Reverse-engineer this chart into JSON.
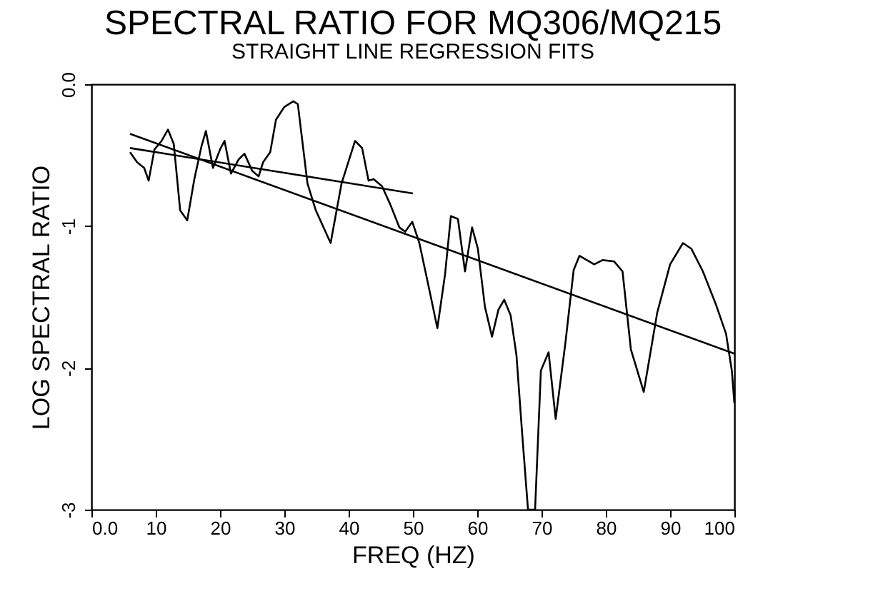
{
  "chart_data": {
    "type": "line",
    "title": "SPECTRAL RATIO FOR MQ306/MQ215",
    "subtitle": "STRAIGHT LINE REGRESSION FITS",
    "xlabel": "FREQ (HZ)",
    "ylabel": "LOG SPECTRAL RATIO",
    "xlim": [
      0,
      100
    ],
    "xticks": [
      {
        "value": 0,
        "label": "0.0"
      },
      10,
      20,
      30,
      40,
      50,
      60,
      70,
      80,
      90,
      100
    ],
    "ylim": [
      -3,
      0
    ],
    "yticks": [
      -3,
      -2,
      -1,
      {
        "value": 0,
        "label": "0.0"
      }
    ],
    "grid": false,
    "marker": "none",
    "line_style": "solid",
    "series": [
      {
        "color": "#000000",
        "x": [
          6,
          7.1,
          8.2,
          8.9,
          9.8,
          10.9,
          11.9,
          12.8,
          13.8,
          14.9,
          16,
          17.1,
          17.8,
          18.9,
          20,
          20.7,
          21.7,
          22.9,
          23.8,
          25,
          26,
          26.7,
          27.8,
          28.7,
          30,
          31.4,
          32.1,
          33.6,
          34.9,
          37.2,
          38.9,
          41,
          42.1,
          43.1,
          43.9,
          45.2,
          46.5,
          47.9,
          48.8,
          49.9,
          51,
          52.6,
          53.8,
          55,
          55.9,
          57,
          58.1,
          59.2,
          60.1,
          61.2,
          62.3,
          63.3,
          64.2,
          65.2,
          66.1,
          67,
          67.9,
          69,
          69.9,
          71.1,
          72.2,
          73.7,
          75,
          75.9,
          78.2,
          79.5,
          81.3,
          82.6,
          83.9,
          85.9,
          88,
          90,
          92,
          93.3,
          95.1,
          97.1,
          98.7,
          99.6,
          100
        ],
        "values": [
          -0.48,
          -0.55,
          -0.59,
          -0.68,
          -0.46,
          -0.4,
          -0.32,
          -0.42,
          -0.89,
          -0.96,
          -0.67,
          -0.44,
          -0.33,
          -0.59,
          -0.46,
          -0.4,
          -0.63,
          -0.53,
          -0.49,
          -0.61,
          -0.65,
          -0.55,
          -0.48,
          -0.25,
          -0.16,
          -0.12,
          -0.14,
          -0.7,
          -0.89,
          -1.12,
          -0.7,
          -0.4,
          -0.45,
          -0.68,
          -0.67,
          -0.72,
          -0.85,
          -1.01,
          -1.04,
          -0.97,
          -1.12,
          -1.46,
          -1.72,
          -1.34,
          -0.93,
          -0.95,
          -1.32,
          -1.01,
          -1.16,
          -1.57,
          -1.78,
          -1.59,
          -1.52,
          -1.63,
          -1.91,
          -2.47,
          -3,
          -3,
          -2.02,
          -1.89,
          -2.36,
          -1.83,
          -1.31,
          -1.21,
          -1.27,
          -1.24,
          -1.25,
          -1.32,
          -1.87,
          -2.17,
          -1.61,
          -1.27,
          -1.12,
          -1.16,
          -1.32,
          -1.55,
          -1.76,
          -2.02,
          -2.25
        ]
      },
      {
        "color": "#000000",
        "x": [
          6,
          100
        ],
        "values": [
          -0.35,
          -1.9
        ]
      },
      {
        "color": "#000000",
        "x": [
          6,
          50
        ],
        "values": [
          -0.45,
          -0.77
        ]
      }
    ]
  }
}
